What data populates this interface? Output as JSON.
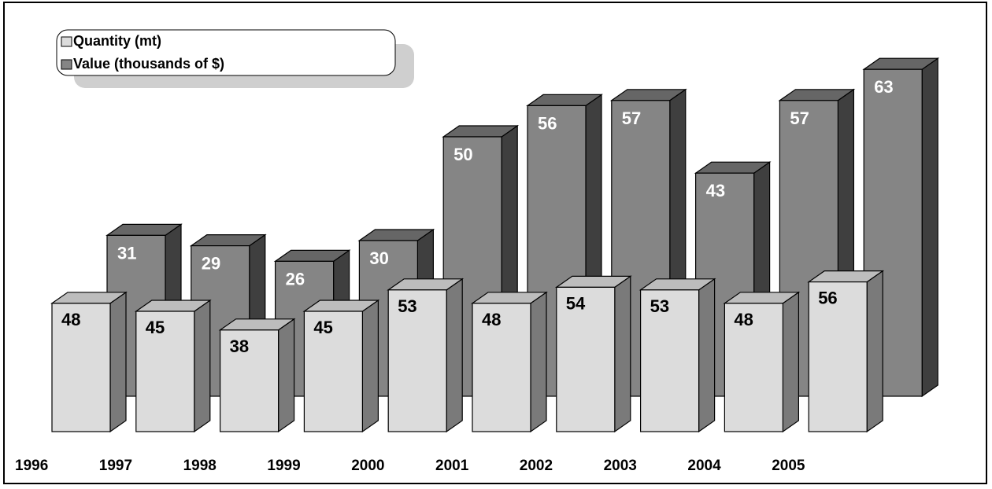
{
  "chart_data": {
    "type": "bar",
    "categories": [
      "1996",
      "1997",
      "1998",
      "1999",
      "2000",
      "2001",
      "2002",
      "2003",
      "2004",
      "2005"
    ],
    "series": [
      {
        "name": "Quantity (mt)",
        "values": [
          48,
          45,
          38,
          45,
          53,
          48,
          54,
          53,
          48,
          56
        ]
      },
      {
        "name": "Value (thousands of $)",
        "values": [
          31,
          29,
          26,
          30,
          50,
          56,
          57,
          43,
          57,
          63
        ]
      }
    ],
    "title": "",
    "xlabel": "",
    "ylabel": "",
    "data_labels": true,
    "three_d": true,
    "grid": false,
    "legend_position": "top-left"
  },
  "colors": {
    "quantity_front": "#dcdcdc",
    "quantity_top": "#bdbdbd",
    "quantity_side": "#7a7a7a",
    "value_front": "#858585",
    "value_top": "#666666",
    "value_side": "#3f3f3f"
  }
}
